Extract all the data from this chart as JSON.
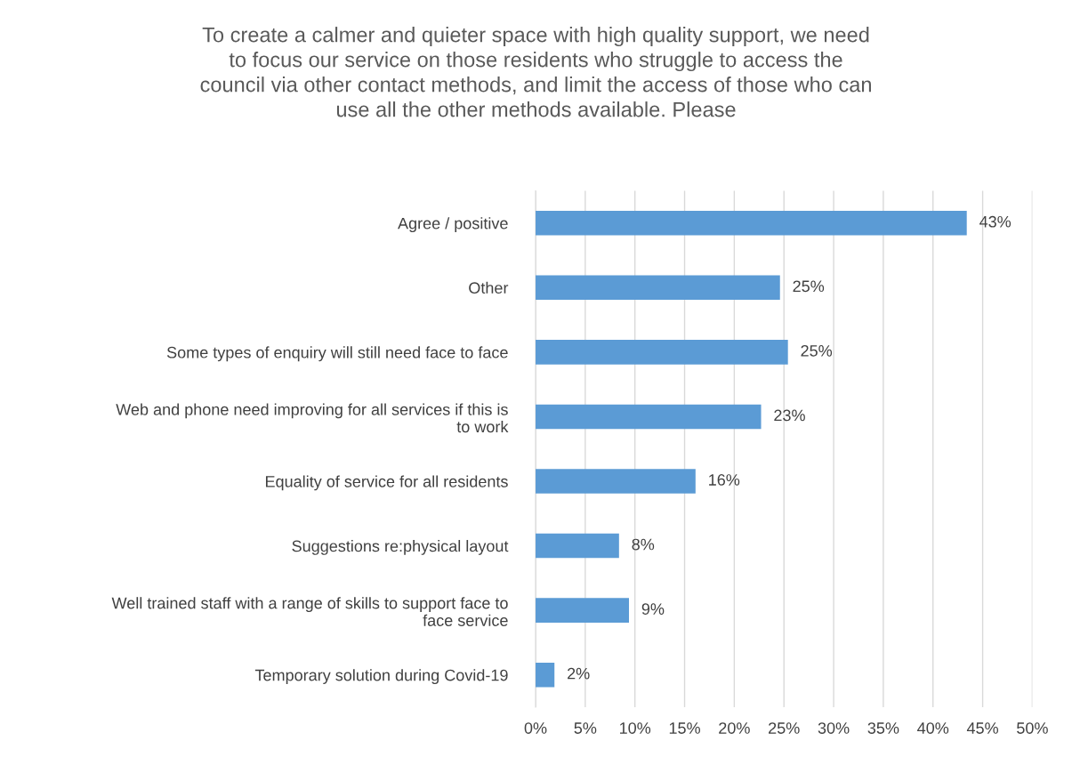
{
  "chart_data": {
    "type": "bar",
    "orientation": "horizontal",
    "title": "To create a calmer and quieter space with high quality support, we need\nto focus our service on those residents who struggle to access the\ncouncil via other contact methods, and limit the access of those who can\nuse all the other methods available. Please",
    "categories": [
      "Agree / positive",
      "Other",
      "Some types of enquiry will still need face to face",
      "Web and phone need improving for all services if this is\nto work",
      "Equality of service for all residents",
      "Suggestions re:physical layout",
      "Well trained staff with a range of skills to support face to\nface service",
      "Temporary solution during Covid-19"
    ],
    "values": [
      43.4,
      24.6,
      25.4,
      22.7,
      16.1,
      8.4,
      9.4,
      1.9
    ],
    "value_labels": [
      "43%",
      "25%",
      "25%",
      "23%",
      "16%",
      "8%",
      "9%",
      "2%"
    ],
    "color": "#5b9bd5",
    "xlim": [
      0,
      50
    ],
    "xticks": [
      {
        "value": 0,
        "label": "0%"
      },
      {
        "value": 5,
        "label": "5%"
      },
      {
        "value": 10,
        "label": "10%"
      },
      {
        "value": 15,
        "label": "15%"
      },
      {
        "value": 20,
        "label": "20%"
      },
      {
        "value": 25,
        "label": "25%"
      },
      {
        "value": 30,
        "label": "30%"
      },
      {
        "value": 35,
        "label": "35%"
      },
      {
        "value": 40,
        "label": "40%"
      },
      {
        "value": 45,
        "label": "45%"
      },
      {
        "value": 50,
        "label": "50%"
      }
    ],
    "grid": "x",
    "legend": false
  }
}
